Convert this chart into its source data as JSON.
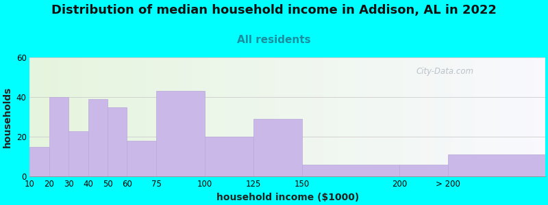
{
  "title": "Distribution of median household income in Addison, AL in 2022",
  "subtitle": "All residents",
  "xlabel": "household income ($1000)",
  "ylabel": "households",
  "bar_color": "#c9b8e8",
  "bar_edgecolor": "#b8a8d8",
  "background_color": "#00ffff",
  "categories": [
    "10",
    "20",
    "30",
    "40",
    "50",
    "60",
    "75",
    "100",
    "125",
    "150",
    "200",
    "> 200"
  ],
  "values": [
    15,
    40,
    23,
    39,
    35,
    18,
    43,
    20,
    29,
    6,
    6,
    11
  ],
  "bar_lefts": [
    10,
    20,
    30,
    40,
    50,
    60,
    75,
    100,
    125,
    150,
    200,
    225
  ],
  "bar_widths": [
    10,
    10,
    10,
    10,
    10,
    15,
    25,
    25,
    25,
    50,
    25,
    50
  ],
  "xtick_pos": [
    10,
    20,
    30,
    40,
    50,
    60,
    75,
    100,
    125,
    150,
    200,
    225
  ],
  "xtick_labels": [
    "10",
    "20",
    "30",
    "40",
    "50",
    "60",
    "75",
    "100",
    "125",
    "150",
    "200",
    "> 200"
  ],
  "xlim": [
    10,
    275
  ],
  "ylim": [
    0,
    60
  ],
  "yticks": [
    0,
    20,
    40,
    60
  ],
  "title_fontsize": 13,
  "subtitle_fontsize": 11,
  "axis_fontsize": 10,
  "tick_fontsize": 8.5,
  "watermark_text": "City-Data.com"
}
